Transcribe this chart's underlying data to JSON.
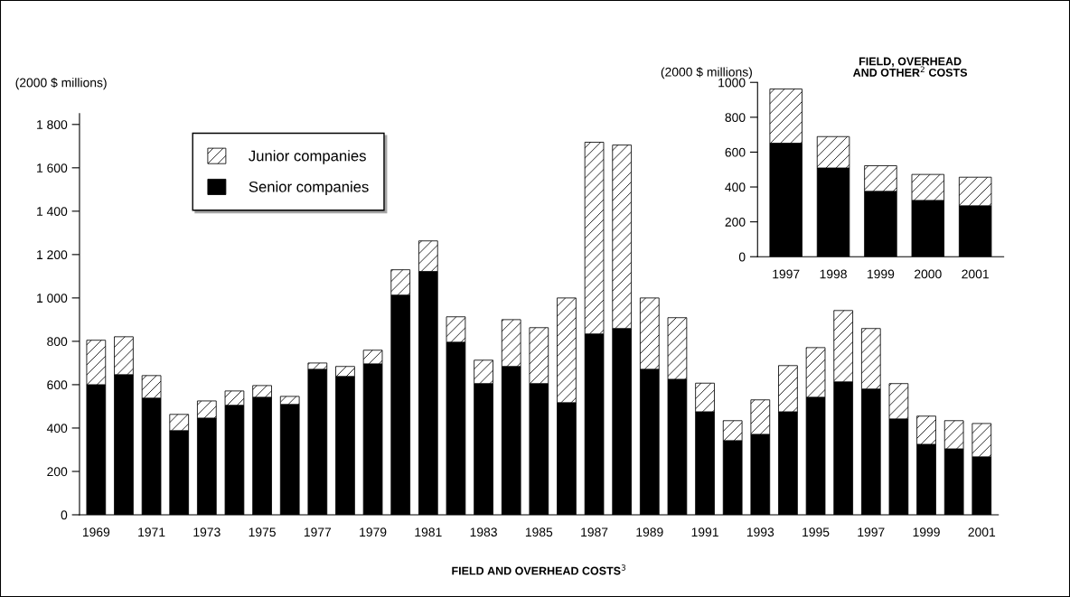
{
  "chart_data": [
    {
      "type": "bar",
      "stacked": true,
      "xlabel": "FIELD AND OVERHEAD COSTS$^{3}$",
      "ylabel": "(2000 $ millions)",
      "categories": [
        "1969",
        null,
        "1971",
        null,
        "1973",
        null,
        "1975",
        null,
        "1977",
        null,
        "1979",
        null,
        "1981",
        null,
        "1983",
        null,
        "1985",
        null,
        "1987",
        null,
        "1989",
        null,
        "1991",
        null,
        "1993",
        null,
        "1995",
        null,
        "1997",
        null,
        "1999",
        null,
        "2001"
      ],
      "series": [
        {
          "name": "Senior companies",
          "color": "#000000",
          "values": [
            600,
            646,
            538,
            388,
            446,
            505,
            542,
            509,
            671,
            638,
            696,
            1013,
            1122,
            796,
            605,
            684,
            605,
            517,
            834,
            859,
            671,
            625,
            475,
            342,
            371,
            475,
            542,
            613,
            580,
            442,
            325,
            304,
            267
          ]
        },
        {
          "name": "Junior companies",
          "color": "#ffffff",
          "values": [
            205,
            175,
            104,
            75,
            79,
            66,
            54,
            37,
            29,
            46,
            63,
            117,
            141,
            117,
            108,
            216,
            258,
            483,
            884,
            846,
            329,
            284,
            132,
            92,
            159,
            213,
            229,
            329,
            279,
            163,
            130,
            130,
            154
          ]
        }
      ],
      "ylim": [
        0,
        1850
      ],
      "yticks": [
        0,
        200,
        400,
        600,
        800,
        {
          "value": 1000,
          "label": "1 000"
        },
        {
          "value": 1200,
          "label": "1 200"
        },
        {
          "value": 1400,
          "label": "1 400"
        },
        {
          "value": 1600,
          "label": "1 600"
        },
        {
          "value": 1800,
          "label": "1 800"
        }
      ],
      "legend": "top left",
      "grid": false
    },
    {
      "type": "bar",
      "stacked": true,
      "title": "FIELD, OVERHEAD\nAND OTHER$^{2}$ COSTS",
      "ylabel": "(2000 $ millions)",
      "categories": [
        "1997",
        "1998",
        "1999",
        "2000",
        "2001"
      ],
      "series": [
        {
          "color": "#000000",
          "values": [
            651,
            509,
            375,
            323,
            292
          ]
        },
        {
          "color": "#ffffff",
          "values": [
            311,
            180,
            147,
            149,
            164
          ]
        }
      ],
      "ylim": [
        0,
        1000
      ],
      "yticks": [
        0,
        200,
        400,
        600,
        800,
        1000
      ],
      "legend": false,
      "grid": false
    }
  ]
}
